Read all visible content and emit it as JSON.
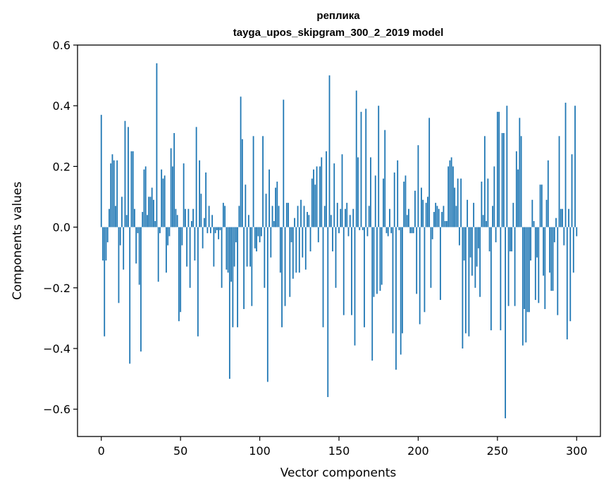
{
  "chart_data": {
    "type": "bar",
    "title_line1": "реплика",
    "title_line2": "tayga_upos_skipgram_300_2_2019 model",
    "xlabel": "Vector components",
    "ylabel": "Components values",
    "xlim": [
      -15,
      315
    ],
    "ylim": [
      -0.69,
      0.6
    ],
    "xticks": [
      0,
      50,
      100,
      150,
      200,
      250,
      300
    ],
    "yticks": [
      -0.6,
      -0.4,
      -0.2,
      0.0,
      0.2,
      0.4,
      0.6
    ],
    "ytick_labels": [
      "−0.6",
      "−0.4",
      "−0.2",
      "0.0",
      "0.2",
      "0.4",
      "0.6"
    ],
    "bar_color": "#1f77b4",
    "values": [
      0.37,
      -0.11,
      -0.36,
      -0.11,
      -0.05,
      0.06,
      0.21,
      0.24,
      0.22,
      0.07,
      0.22,
      -0.25,
      -0.06,
      0.1,
      -0.14,
      0.35,
      0.04,
      0.33,
      -0.45,
      0.25,
      0.25,
      0.06,
      -0.12,
      -0.02,
      -0.19,
      -0.41,
      0.05,
      0.19,
      0.2,
      0.04,
      0.1,
      0.1,
      0.13,
      0.09,
      0.02,
      0.54,
      -0.18,
      -0.02,
      0.19,
      0.16,
      0.17,
      -0.15,
      -0.06,
      -0.03,
      0.26,
      0.2,
      0.31,
      0.06,
      0.04,
      -0.31,
      -0.28,
      -0.06,
      0.21,
      0.06,
      -0.13,
      0.06,
      -0.2,
      0.02,
      0.06,
      -0.11,
      0.33,
      -0.36,
      0.22,
      0.11,
      -0.07,
      0.03,
      0.18,
      -0.02,
      0.07,
      -0.02,
      0.04,
      -0.13,
      -0.02,
      -0.01,
      -0.04,
      -0.01,
      -0.2,
      0.08,
      0.07,
      -0.14,
      -0.15,
      -0.5,
      -0.18,
      -0.33,
      -0.13,
      -0.05,
      -0.33,
      0.07,
      0.43,
      0.29,
      -0.27,
      0.14,
      -0.13,
      0.04,
      -0.13,
      -0.26,
      0.3,
      -0.07,
      -0.08,
      -0.03,
      -0.05,
      -0.03,
      0.3,
      -0.2,
      0.11,
      -0.51,
      0.19,
      -0.1,
      0.07,
      0.02,
      0.13,
      0.15,
      0.07,
      -0.15,
      -0.33,
      0.42,
      -0.26,
      0.08,
      0.08,
      -0.23,
      -0.05,
      -0.17,
      0.03,
      -0.15,
      0.07,
      -0.15,
      0.09,
      -0.1,
      0.07,
      -0.14,
      0.05,
      0.04,
      -0.08,
      0.16,
      0.19,
      0.14,
      0.2,
      -0.05,
      0.2,
      0.23,
      -0.33,
      0.07,
      0.25,
      -0.56,
      0.5,
      0.04,
      -0.08,
      0.21,
      -0.2,
      0.08,
      -0.02,
      0.06,
      0.24,
      -0.29,
      0.06,
      0.08,
      -0.03,
      0.04,
      -0.29,
      0.06,
      -0.39,
      0.45,
      0.23,
      -0.01,
      0.38,
      -0.01,
      -0.33,
      0.39,
      -0.03,
      0.07,
      0.23,
      -0.44,
      -0.23,
      0.17,
      -0.22,
      0.4,
      -0.21,
      -0.19,
      0.16,
      0.32,
      -0.02,
      -0.03,
      0.06,
      -0.02,
      -0.35,
      0.18,
      -0.47,
      0.22,
      -0.01,
      -0.42,
      -0.35,
      0.15,
      0.17,
      0.04,
      0.06,
      -0.02,
      -0.02,
      -0.02,
      0.12,
      -0.22,
      0.27,
      -0.32,
      0.13,
      0.09,
      -0.28,
      0.08,
      0.1,
      0.36,
      -0.2,
      -0.04,
      0.05,
      0.08,
      0.07,
      0.06,
      -0.24,
      0.05,
      0.07,
      0.02,
      0.02,
      0.2,
      0.22,
      0.23,
      0.2,
      0.13,
      0.07,
      0.16,
      -0.06,
      0.16,
      -0.4,
      -0.11,
      -0.35,
      0.09,
      -0.36,
      -0.1,
      -0.16,
      0.08,
      -0.2,
      -0.13,
      -0.07,
      -0.23,
      0.15,
      0.04,
      0.3,
      0.02,
      0.16,
      -0.08,
      -0.34,
      0.07,
      0.2,
      -0.05,
      0.38,
      0.38,
      -0.34,
      0.31,
      0.31,
      -0.63,
      0.4,
      -0.26,
      -0.08,
      -0.08,
      0.08,
      -0.26,
      0.25,
      0.19,
      0.36,
      0.3,
      -0.39,
      -0.27,
      -0.38,
      -0.28,
      -0.28,
      -0.11,
      0.09,
      0.02,
      -0.24,
      -0.1,
      -0.25,
      0.14,
      0.14,
      -0.16,
      -0.27,
      0.09,
      0.22,
      -0.15,
      -0.21,
      -0.21,
      -0.05,
      0.03,
      -0.29,
      0.3,
      0.06,
      0.06,
      -0.06,
      0.41,
      -0.37,
      0.06,
      -0.31,
      0.24,
      -0.15,
      0.4,
      -0.03
    ]
  }
}
